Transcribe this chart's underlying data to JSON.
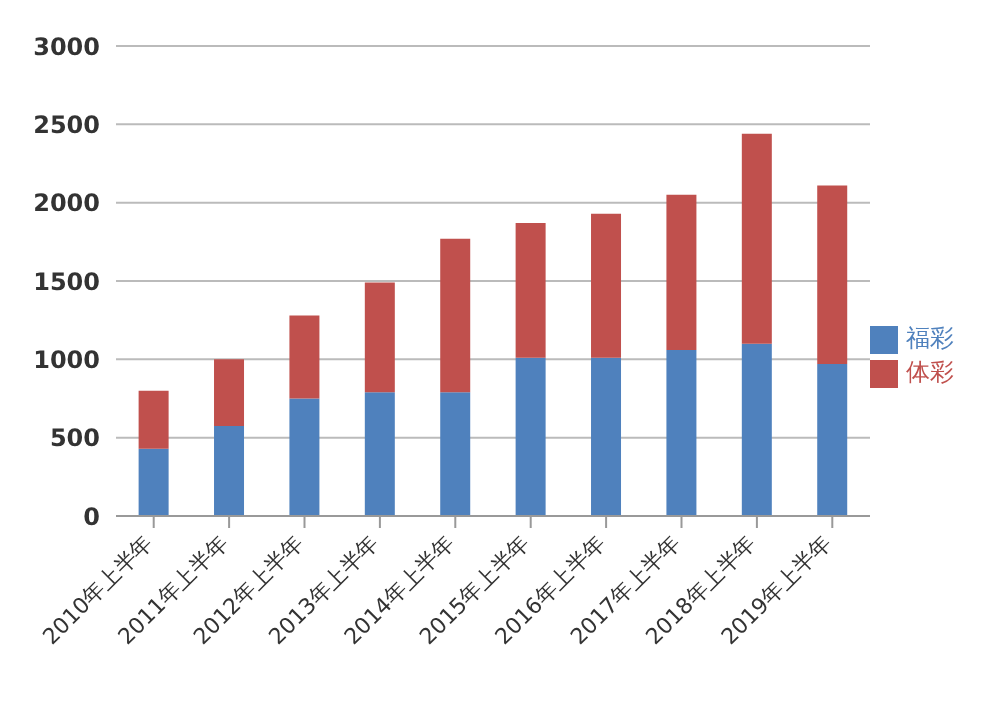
{
  "chart_data": {
    "type": "bar",
    "stacked": true,
    "categories": [
      "2010年上半年",
      "2011年上半年",
      "2012年上半年",
      "2013年上半年",
      "2014年上半年",
      "2015年上半年",
      "2016年上半年",
      "2017年上半年",
      "2018年上半年",
      "2019年上半年"
    ],
    "series": [
      {
        "name": "福彩",
        "color": "#4f81bd",
        "values": [
          430,
          575,
          750,
          790,
          790,
          1010,
          1010,
          1060,
          1100,
          970
        ]
      },
      {
        "name": "体彩",
        "color": "#c0504d",
        "values": [
          370,
          425,
          530,
          700,
          980,
          860,
          920,
          990,
          1340,
          1140
        ]
      }
    ],
    "ylim": [
      0,
      3000
    ],
    "yticks": [
      0,
      500,
      1000,
      1500,
      2000,
      2500,
      3000
    ],
    "grid": "y",
    "legend": "right"
  }
}
